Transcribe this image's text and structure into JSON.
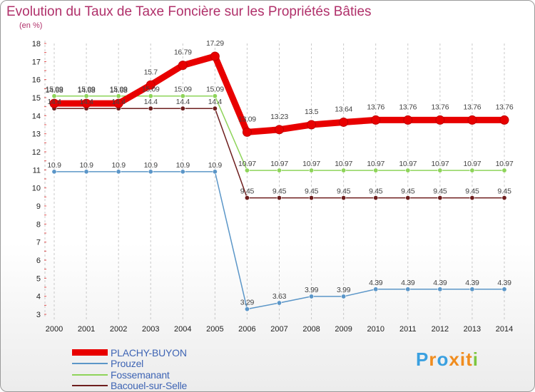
{
  "title": "Evolution du Taux de Taxe Foncière sur les Propriétés Bâties",
  "subtitle": "(en %)",
  "logo": {
    "letters": [
      "P",
      "r",
      "o",
      "x",
      "i",
      "t",
      "i"
    ],
    "colors": [
      "#3aa0e0",
      "#f08c1e",
      "#3aa0e0",
      "#f08c1e",
      "#f08c1e",
      "#f08c1e",
      "#7cc63e"
    ]
  },
  "chart_data": {
    "type": "line",
    "title": "Evolution du Taux de Taxe Foncière sur les Propriétés Bâties",
    "ylabel": "(en %)",
    "xlabel": "",
    "ylim": [
      3,
      18
    ],
    "yticks": [
      3,
      4,
      5,
      6,
      7,
      8,
      9,
      10,
      11,
      12,
      13,
      14,
      15,
      16,
      17,
      18
    ],
    "grid": "vertical dashed",
    "legend_position": "bottom-left",
    "x": [
      2000,
      2001,
      2002,
      2003,
      2004,
      2005,
      2006,
      2007,
      2008,
      2009,
      2010,
      2011,
      2012,
      2013,
      2014
    ],
    "series": [
      {
        "name": "PLACHY-BUYON",
        "color": "#e80000",
        "values": [
          14.68,
          14.68,
          14.68,
          15.7,
          16.79,
          17.29,
          13.09,
          13.23,
          13.5,
          13.64,
          13.76,
          13.76,
          13.76,
          13.76,
          13.76
        ],
        "labels": [
          "14.68",
          "14.68",
          "14.68",
          "15.7",
          "16.79",
          "17.29",
          "13.09",
          "13.23",
          "13.5",
          "13.64",
          "13.76",
          "13.76",
          "13.76",
          "13.76",
          "13.76"
        ]
      },
      {
        "name": "Prouzel",
        "color": "#5b96c8",
        "values": [
          10.9,
          10.9,
          10.9,
          10.9,
          10.9,
          10.9,
          3.29,
          3.63,
          3.99,
          3.99,
          4.39,
          4.39,
          4.39,
          4.39,
          4.39
        ],
        "labels": [
          "10.9",
          "10.9",
          "10.9",
          "10.9",
          "10.9",
          "10.9",
          "3.29",
          "3.63",
          "3.99",
          "3.99",
          "4.39",
          "4.39",
          "4.39",
          "4.39",
          "4.39"
        ]
      },
      {
        "name": "Fossemanant",
        "color": "#8ed45a",
        "values": [
          15.09,
          15.09,
          15.09,
          15.09,
          15.09,
          15.09,
          10.97,
          10.97,
          10.97,
          10.97,
          10.97,
          10.97,
          10.97,
          10.97,
          10.97
        ],
        "labels": [
          "15.09",
          "15.09",
          "15.09",
          "15.09",
          "15.09",
          "15.09",
          "10.97",
          "10.97",
          "10.97",
          "10.97",
          "10.97",
          "10.97",
          "10.97",
          "10.97",
          "10.97"
        ]
      },
      {
        "name": "Bacouel-sur-Selle",
        "color": "#6e1e1e",
        "values": [
          14.4,
          14.4,
          14.4,
          14.4,
          14.4,
          14.4,
          9.45,
          9.45,
          9.45,
          9.45,
          9.45,
          9.45,
          9.45,
          9.45,
          9.45
        ],
        "labels": [
          "14.4",
          "14.4",
          "14.4",
          "14.4",
          "14.4",
          "14.4",
          "9.45",
          "9.45",
          "9.45",
          "9.45",
          "9.45",
          "9.45",
          "9.45",
          "9.45",
          "9.45"
        ]
      }
    ]
  }
}
